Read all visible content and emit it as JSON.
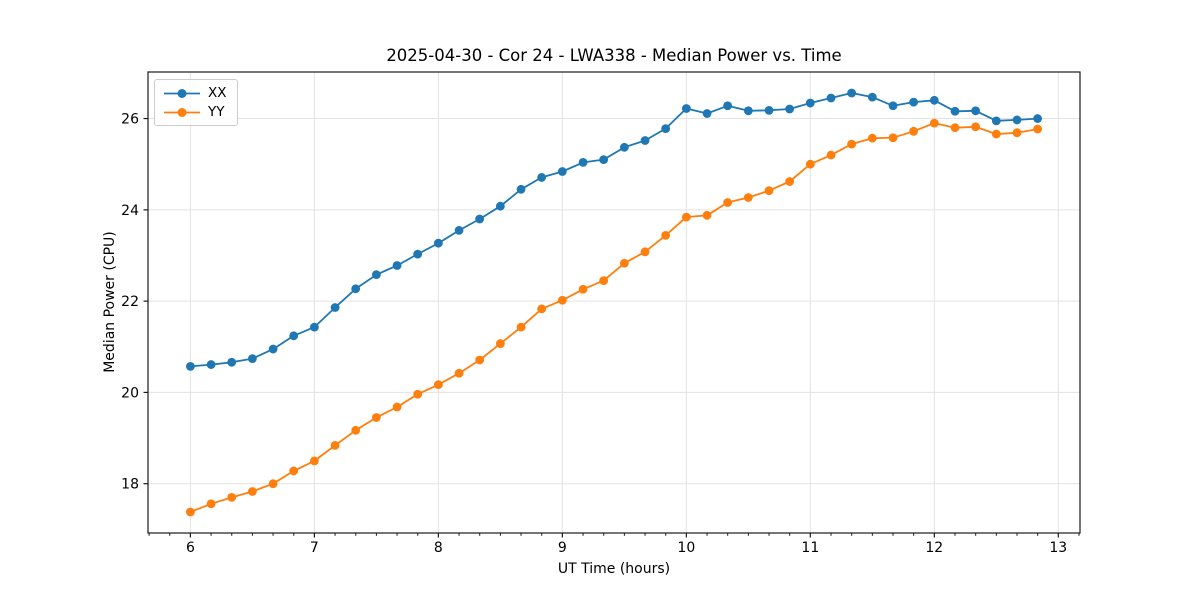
{
  "chart_data": {
    "type": "line",
    "title": "2025-04-30 - Cor 24 - LWA338 - Median Power vs. Time",
    "xlabel": "UT Time (hours)",
    "ylabel": "Median Power (CPU)",
    "x": [
      6.0,
      6.167,
      6.333,
      6.5,
      6.667,
      6.833,
      7.0,
      7.167,
      7.333,
      7.5,
      7.667,
      7.833,
      8.0,
      8.167,
      8.333,
      8.5,
      8.667,
      8.833,
      9.0,
      9.167,
      9.333,
      9.5,
      9.667,
      9.833,
      10.0,
      10.167,
      10.333,
      10.5,
      10.667,
      10.833,
      11.0,
      11.167,
      11.333,
      11.5,
      11.667,
      11.833,
      12.0,
      12.167,
      12.333,
      12.5,
      12.667,
      12.833
    ],
    "series": [
      {
        "name": "XX",
        "color": "#1f77b4",
        "values": [
          20.57,
          20.61,
          20.66,
          20.74,
          20.95,
          21.24,
          21.43,
          21.86,
          22.27,
          22.58,
          22.78,
          23.03,
          23.27,
          23.55,
          23.8,
          24.08,
          24.45,
          24.71,
          24.84,
          25.04,
          25.1,
          25.37,
          25.52,
          25.78,
          26.22,
          26.11,
          26.28,
          26.17,
          26.18,
          26.21,
          26.34,
          26.45,
          26.56,
          26.47,
          26.28,
          26.36,
          26.4,
          26.16,
          26.17,
          25.95,
          25.97,
          26.0
        ]
      },
      {
        "name": "YY",
        "color": "#ff7f0e",
        "values": [
          17.38,
          17.56,
          17.7,
          17.83,
          18.0,
          18.28,
          18.5,
          18.84,
          19.17,
          19.45,
          19.68,
          19.96,
          20.17,
          20.42,
          20.71,
          21.07,
          21.43,
          21.83,
          22.02,
          22.26,
          22.45,
          22.83,
          23.08,
          23.44,
          23.84,
          23.88,
          24.16,
          24.27,
          24.42,
          24.62,
          25.0,
          25.2,
          25.44,
          25.57,
          25.58,
          25.72,
          25.9,
          25.8,
          25.82,
          25.66,
          25.69,
          25.77
        ]
      }
    ],
    "xlim": [
      5.658,
      13.175
    ],
    "ylim": [
      16.92,
      27.02
    ],
    "x_ticks": [
      6,
      7,
      8,
      9,
      10,
      11,
      12,
      13
    ],
    "y_ticks": [
      18,
      20,
      22,
      24,
      26
    ],
    "x_minor_tick_step": 0.16667,
    "grid": true,
    "legend_position": "upper left",
    "marker": "o"
  },
  "style": {
    "grid_color": "#e3e3e3",
    "spine_color": "#1a1a1a",
    "tick_color": "#1a1a1a",
    "legend_border_color": "#cccccc"
  }
}
